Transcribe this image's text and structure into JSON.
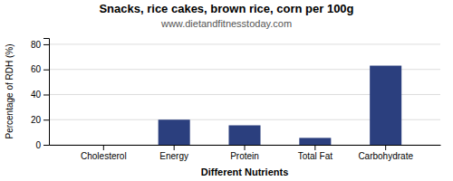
{
  "chart_data": {
    "type": "bar",
    "title": "Snacks, rice cakes, brown rice, corn per 100g",
    "subtitle": "www.dietandfitnesstoday.com",
    "categories": [
      "Cholesterol",
      "Energy",
      "Protein",
      "Total Fat",
      "Carbohydrate"
    ],
    "values": [
      0,
      20,
      15.5,
      5.5,
      63
    ],
    "color": "#2b3f7e",
    "xlabel": "Different Nutrients",
    "ylabel": "Percentage of RDH (%)",
    "ylim": [
      0,
      85
    ],
    "yticks": [
      0,
      20,
      40,
      60,
      80
    ],
    "grid": true
  }
}
